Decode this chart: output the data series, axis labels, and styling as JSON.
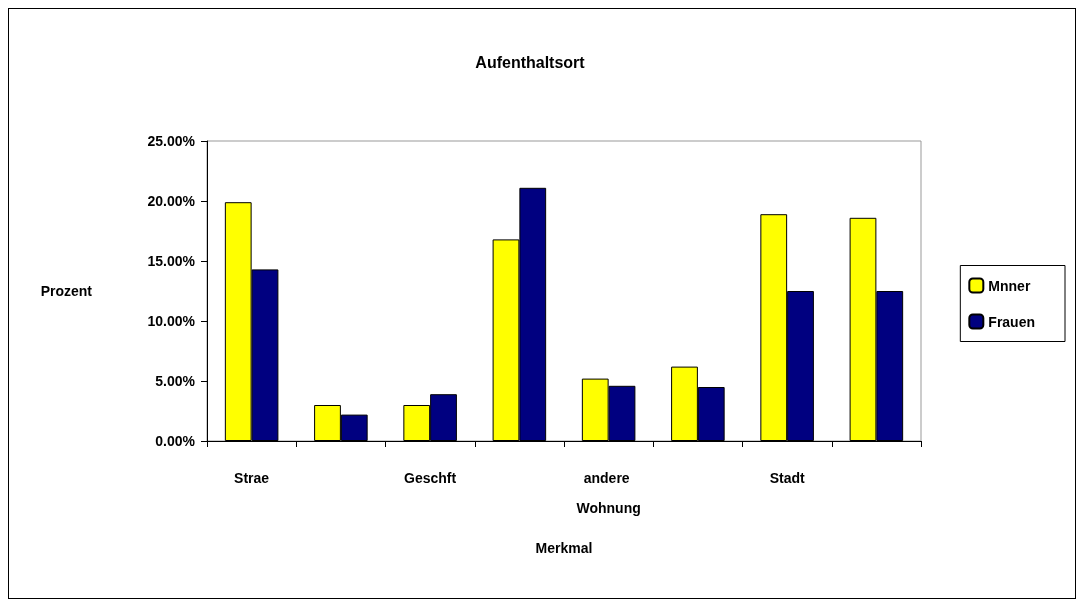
{
  "chart_data": {
    "type": "bar",
    "title": "Aufenthaltsort",
    "xlabel": "Merkmal",
    "ylabel": "Prozent",
    "categories": [
      "Strae",
      null,
      "Geschft",
      null,
      "andere Wohnung",
      null,
      "Stadt",
      null
    ],
    "series": [
      {
        "name": "Mnner",
        "color": "#ffff00",
        "values": [
          19.9,
          3.0,
          3.0,
          16.8,
          5.2,
          6.2,
          18.9,
          18.6
        ]
      },
      {
        "name": "Frauen",
        "color": "#000080",
        "values": [
          14.3,
          2.2,
          3.9,
          21.1,
          4.6,
          4.5,
          12.5,
          12.5
        ]
      }
    ],
    "ylim": [
      0,
      25
    ],
    "yticks": [
      {
        "value": 0,
        "label": "0.00%"
      },
      {
        "value": 5,
        "label": "5.00%"
      },
      {
        "value": 10,
        "label": "10.00%"
      },
      {
        "value": 15,
        "label": "15.00%"
      },
      {
        "value": 20,
        "label": "20.00%"
      },
      {
        "value": 25,
        "label": "25.00%"
      }
    ],
    "grid": false,
    "legend": "right"
  }
}
